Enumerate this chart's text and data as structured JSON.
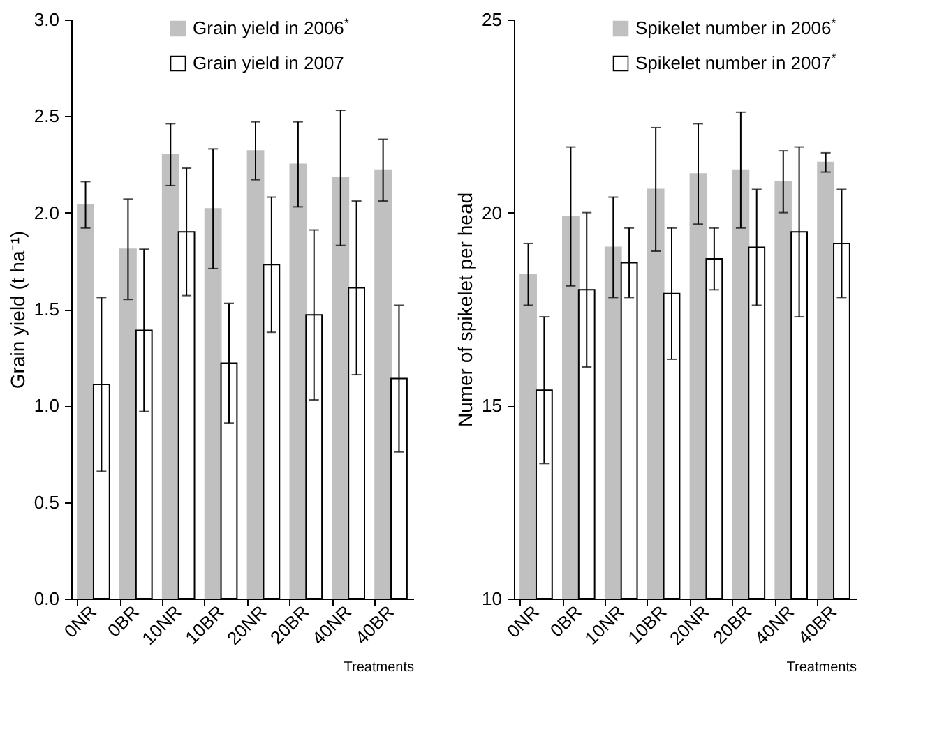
{
  "chart_data": [
    {
      "type": "bar",
      "categories": [
        "0NR",
        "0BR",
        "10NR",
        "10BR",
        "20NR",
        "20BR",
        "40NR",
        "40BR"
      ],
      "xlabel": "Treatments",
      "ylabel": "Grain yield (t ha⁻¹)",
      "ylim": [
        0,
        3
      ],
      "yticks": [
        {
          "value": 0,
          "label": "0.0"
        },
        {
          "value": 0.5,
          "label": "0.5"
        },
        {
          "value": 1,
          "label": "1.0"
        },
        {
          "value": 1.5,
          "label": "1.5"
        },
        {
          "value": 2,
          "label": "2.0"
        },
        {
          "value": 2.5,
          "label": "2.5"
        },
        {
          "value": 3,
          "label": "3.0"
        }
      ],
      "legend": "top",
      "grid": false,
      "series": [
        {
          "name": "Grain yield in 2006$^{*}$",
          "color": "#c0c0c0",
          "values": [
            2.04,
            1.81,
            2.3,
            2.02,
            2.32,
            2.25,
            2.18,
            2.22
          ],
          "errors": [
            0.12,
            0.26,
            0.16,
            0.31,
            0.15,
            0.22,
            0.35,
            0.16
          ]
        },
        {
          "name": "Grain yield in 2007",
          "color": "#ffffff",
          "values": [
            1.11,
            1.39,
            1.9,
            1.22,
            1.73,
            1.47,
            1.61,
            1.14
          ],
          "errors": [
            0.45,
            0.42,
            0.33,
            0.31,
            0.35,
            0.44,
            0.45,
            0.38
          ]
        }
      ]
    },
    {
      "type": "bar",
      "categories": [
        "0NR",
        "0BR",
        "10NR",
        "10BR",
        "20NR",
        "20BR",
        "40NR",
        "40BR"
      ],
      "xlabel": "Treatments",
      "ylabel": "Numer of spikelet per head",
      "ylim": [
        10,
        25
      ],
      "yticks": [
        10,
        15,
        20,
        25
      ],
      "legend": "top",
      "grid": false,
      "series": [
        {
          "name": "Spikelet number in 2006$^{*}$",
          "color": "#c0c0c0",
          "values": [
            18.4,
            19.9,
            19.1,
            20.6,
            21.0,
            21.1,
            20.8,
            21.3
          ],
          "errors": [
            0.8,
            1.8,
            1.3,
            1.6,
            1.3,
            1.5,
            0.8,
            0.25
          ]
        },
        {
          "name": "Spikelet number in 2007$^{*}$",
          "color": "#ffffff",
          "values": [
            15.4,
            18.0,
            18.7,
            17.9,
            18.8,
            19.1,
            19.5,
            19.2
          ],
          "errors": [
            1.9,
            2.0,
            0.9,
            1.7,
            0.8,
            1.5,
            2.2,
            1.4
          ]
        }
      ]
    }
  ]
}
